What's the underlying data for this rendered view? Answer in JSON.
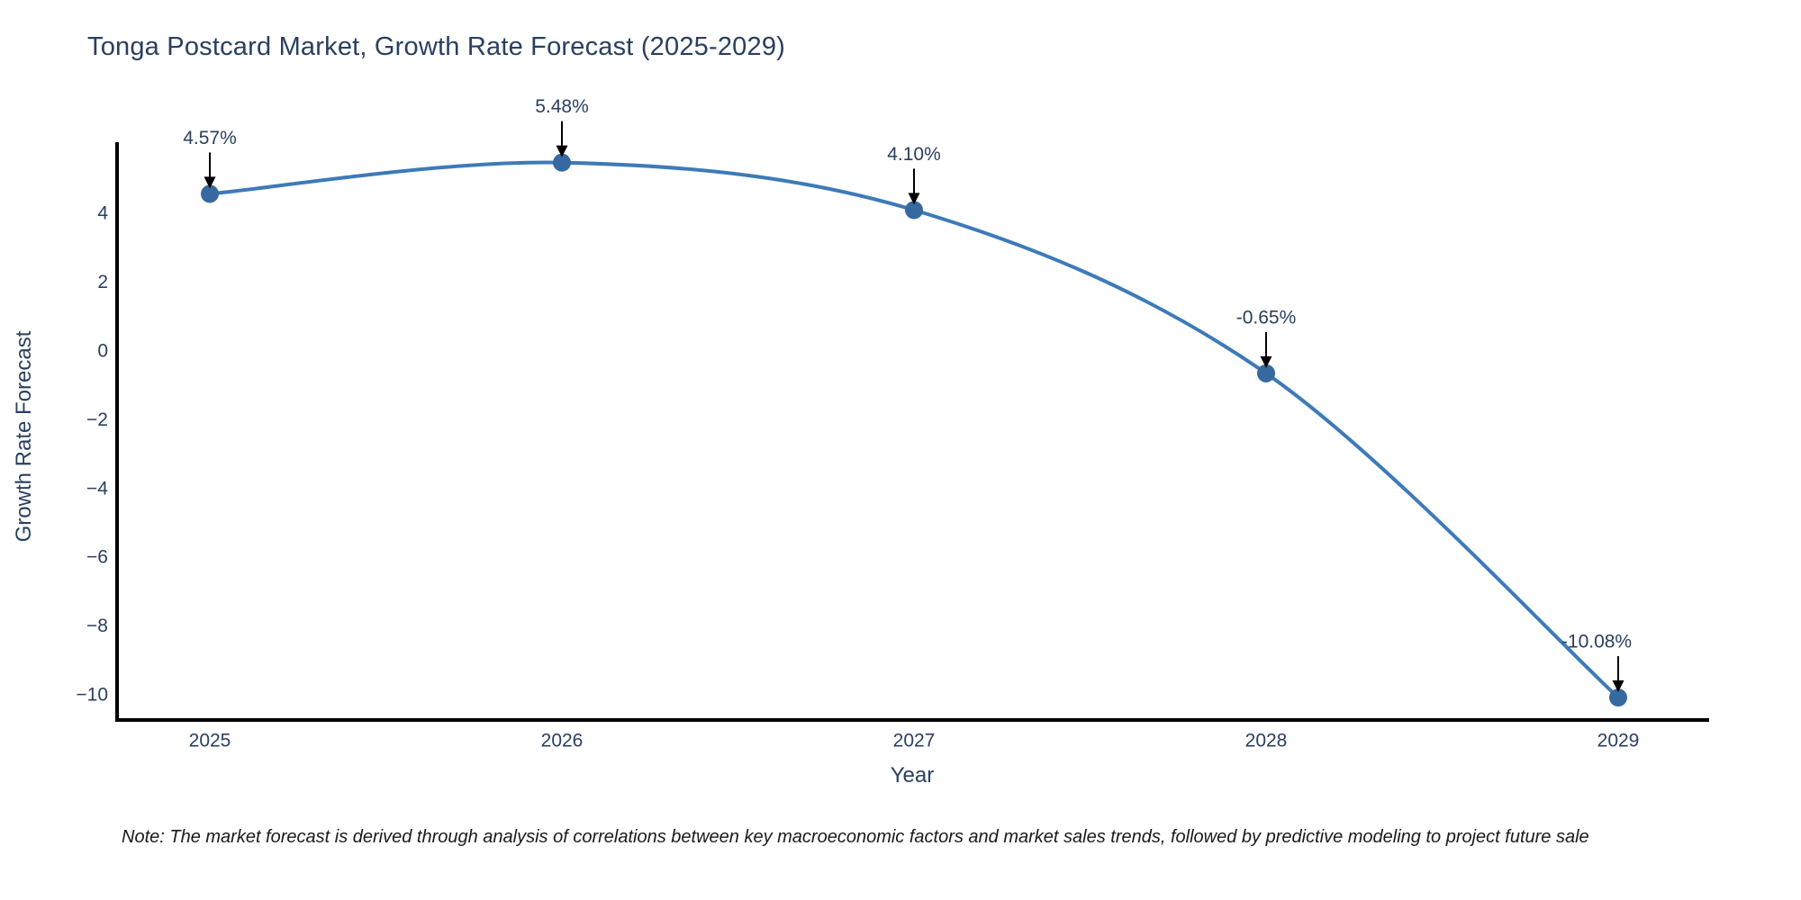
{
  "note": "Note: The market forecast is derived through analysis of correlations between key macroeconomic factors and market sales trends, followed by predictive modeling to project future sale",
  "chart_data": {
    "type": "line",
    "title": "Tonga Postcard Market, Growth Rate Forecast (2025-2029)",
    "xlabel": "Year",
    "ylabel": "Growth Rate Forecast",
    "categories": [
      "2025",
      "2026",
      "2027",
      "2028",
      "2029"
    ],
    "values": [
      4.57,
      5.48,
      4.1,
      -0.65,
      -10.08
    ],
    "point_labels": [
      "4.57%",
      "5.48%",
      "4.10%",
      "-0.65%",
      "-10.08%"
    ],
    "y_ticks": [
      4,
      2,
      0,
      -2,
      -4,
      -6,
      -8,
      -10
    ],
    "ylim": [
      -10.75,
      6.05
    ],
    "grid": false,
    "legend": "none",
    "colors": {
      "line": "#3d7ab8",
      "marker": "#35699f",
      "axis": "#000000",
      "arrow": "#000000",
      "tick_text": "#2a3f5f",
      "title_text": "#2a3f5f",
      "annotation_text": "#2a3f5f",
      "note_text": "#1a1a1a",
      "background": "#ffffff"
    }
  }
}
